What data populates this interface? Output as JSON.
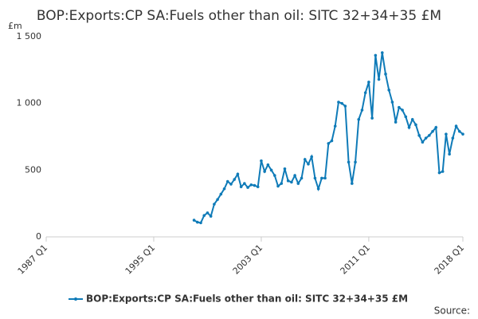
{
  "chart_data": {
    "type": "line",
    "title": "BOP:Exports:CP SA:Fuels other than oil: SITC 32+34+35 £M",
    "y_unit": "£m",
    "source": "Source:",
    "categories": [
      "1987 Q1",
      null,
      null,
      null,
      null,
      null,
      null,
      null,
      null,
      null,
      null,
      null,
      null,
      null,
      null,
      null,
      null,
      null,
      null,
      null,
      null,
      null,
      null,
      null,
      null,
      null,
      null,
      null,
      null,
      null,
      null,
      null,
      "1995 Q1",
      null,
      null,
      null,
      null,
      null,
      null,
      null,
      null,
      null,
      null,
      null,
      null,
      null,
      null,
      null,
      null,
      null,
      null,
      null,
      null,
      null,
      null,
      null,
      null,
      null,
      null,
      null,
      null,
      null,
      null,
      null,
      "2003 Q1",
      null,
      null,
      null,
      null,
      null,
      null,
      null,
      null,
      null,
      null,
      null,
      null,
      null,
      null,
      null,
      null,
      null,
      null,
      null,
      null,
      null,
      null,
      null,
      null,
      null,
      null,
      null,
      null,
      null,
      null,
      null,
      "2011 Q1",
      null,
      null,
      null,
      null,
      null,
      null,
      null,
      null,
      null,
      null,
      null,
      null,
      null,
      null,
      null,
      null,
      null,
      null,
      null,
      null,
      null,
      null,
      null,
      null,
      null,
      null,
      null,
      "2018 Q1"
    ],
    "series": [
      {
        "name": "BOP:Exports:CP SA:Fuels other than oil: SITC 32+34+35 £M",
        "color": "#0f7bb8",
        "values": [
          null,
          null,
          null,
          null,
          null,
          null,
          null,
          null,
          null,
          null,
          null,
          null,
          null,
          null,
          null,
          null,
          null,
          null,
          null,
          null,
          null,
          null,
          null,
          null,
          null,
          null,
          null,
          null,
          null,
          null,
          null,
          null,
          null,
          null,
          null,
          null,
          null,
          null,
          null,
          null,
          null,
          null,
          null,
          null,
          125,
          110,
          105,
          160,
          180,
          155,
          245,
          280,
          320,
          360,
          415,
          395,
          430,
          470,
          375,
          400,
          370,
          390,
          385,
          375,
          570,
          490,
          540,
          500,
          460,
          380,
          400,
          510,
          420,
          410,
          460,
          400,
          440,
          580,
          545,
          600,
          440,
          360,
          440,
          440,
          700,
          720,
          830,
          1010,
          1000,
          980,
          560,
          400,
          560,
          880,
          950,
          1080,
          1160,
          890,
          1360,
          1180,
          1380,
          1220,
          1100,
          1010,
          860,
          970,
          950,
          900,
          820,
          880,
          840,
          760,
          710,
          740,
          760,
          790,
          820,
          480,
          490,
          770,
          620,
          740,
          830,
          790,
          770
        ]
      }
    ],
    "ylim": [
      0,
      1500
    ],
    "yticks": [
      0,
      500,
      {
        "value": 1000,
        "label": "1 000"
      },
      {
        "value": 1500,
        "label": "1 500"
      }
    ],
    "grid": false,
    "legend": "bottom"
  }
}
